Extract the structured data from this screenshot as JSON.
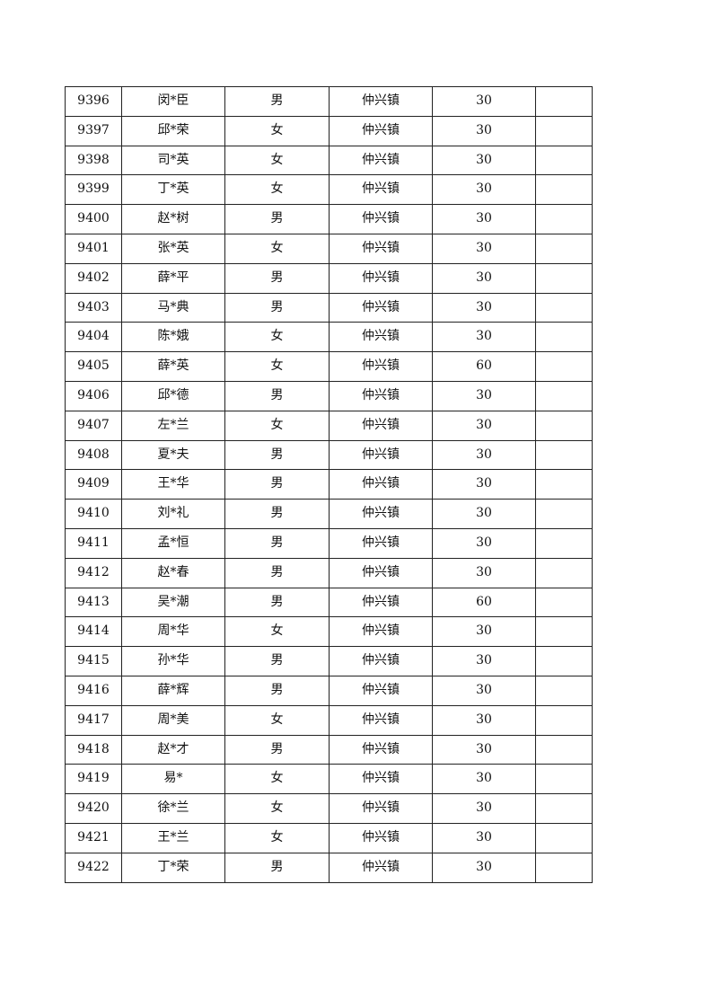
{
  "rows": [
    {
      "id": "9396",
      "name": "闵*臣",
      "gender": "男",
      "town": "仲兴镇",
      "amount": "30",
      "note": ""
    },
    {
      "id": "9397",
      "name": "邱*荣",
      "gender": "女",
      "town": "仲兴镇",
      "amount": "30",
      "note": ""
    },
    {
      "id": "9398",
      "name": "司*英",
      "gender": "女",
      "town": "仲兴镇",
      "amount": "30",
      "note": ""
    },
    {
      "id": "9399",
      "name": "丁*英",
      "gender": "女",
      "town": "仲兴镇",
      "amount": "30",
      "note": ""
    },
    {
      "id": "9400",
      "name": "赵*树",
      "gender": "男",
      "town": "仲兴镇",
      "amount": "30",
      "note": ""
    },
    {
      "id": "9401",
      "name": "张*英",
      "gender": "女",
      "town": "仲兴镇",
      "amount": "30",
      "note": ""
    },
    {
      "id": "9402",
      "name": "薛*平",
      "gender": "男",
      "town": "仲兴镇",
      "amount": "30",
      "note": ""
    },
    {
      "id": "9403",
      "name": "马*典",
      "gender": "男",
      "town": "仲兴镇",
      "amount": "30",
      "note": ""
    },
    {
      "id": "9404",
      "name": "陈*娥",
      "gender": "女",
      "town": "仲兴镇",
      "amount": "30",
      "note": ""
    },
    {
      "id": "9405",
      "name": "薛*英",
      "gender": "女",
      "town": "仲兴镇",
      "amount": "60",
      "note": ""
    },
    {
      "id": "9406",
      "name": "邱*德",
      "gender": "男",
      "town": "仲兴镇",
      "amount": "30",
      "note": ""
    },
    {
      "id": "9407",
      "name": "左*兰",
      "gender": "女",
      "town": "仲兴镇",
      "amount": "30",
      "note": ""
    },
    {
      "id": "9408",
      "name": "夏*夫",
      "gender": "男",
      "town": "仲兴镇",
      "amount": "30",
      "note": ""
    },
    {
      "id": "9409",
      "name": "王*华",
      "gender": "男",
      "town": "仲兴镇",
      "amount": "30",
      "note": ""
    },
    {
      "id": "9410",
      "name": "刘*礼",
      "gender": "男",
      "town": "仲兴镇",
      "amount": "30",
      "note": ""
    },
    {
      "id": "9411",
      "name": "孟*恒",
      "gender": "男",
      "town": "仲兴镇",
      "amount": "30",
      "note": ""
    },
    {
      "id": "9412",
      "name": "赵*春",
      "gender": "男",
      "town": "仲兴镇",
      "amount": "30",
      "note": ""
    },
    {
      "id": "9413",
      "name": "吴*潮",
      "gender": "男",
      "town": "仲兴镇",
      "amount": "60",
      "note": ""
    },
    {
      "id": "9414",
      "name": "周*华",
      "gender": "女",
      "town": "仲兴镇",
      "amount": "30",
      "note": ""
    },
    {
      "id": "9415",
      "name": "孙*华",
      "gender": "男",
      "town": "仲兴镇",
      "amount": "30",
      "note": ""
    },
    {
      "id": "9416",
      "name": "薛*辉",
      "gender": "男",
      "town": "仲兴镇",
      "amount": "30",
      "note": ""
    },
    {
      "id": "9417",
      "name": "周*美",
      "gender": "女",
      "town": "仲兴镇",
      "amount": "30",
      "note": ""
    },
    {
      "id": "9418",
      "name": "赵*才",
      "gender": "男",
      "town": "仲兴镇",
      "amount": "30",
      "note": ""
    },
    {
      "id": "9419",
      "name": "易*",
      "gender": "女",
      "town": "仲兴镇",
      "amount": "30",
      "note": ""
    },
    {
      "id": "9420",
      "name": "徐*兰",
      "gender": "女",
      "town": "仲兴镇",
      "amount": "30",
      "note": ""
    },
    {
      "id": "9421",
      "name": "王*兰",
      "gender": "女",
      "town": "仲兴镇",
      "amount": "30",
      "note": ""
    },
    {
      "id": "9422",
      "name": "丁*荣",
      "gender": "男",
      "town": "仲兴镇",
      "amount": "30",
      "note": ""
    }
  ]
}
